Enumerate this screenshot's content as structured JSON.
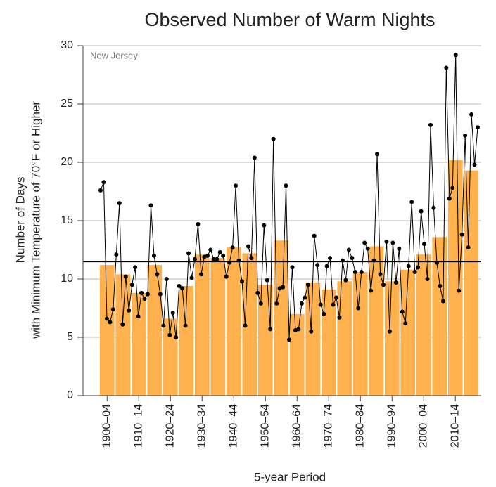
{
  "chart_data": {
    "type": "bar",
    "title": "Observed Number of Warm Nights",
    "subtitle": "New Jersey",
    "ylabel": [
      "Number of Days",
      "with Minimum Temperature of 70°F or Higher"
    ],
    "xlabel": "5-year Period",
    "categories": [
      "1900–04",
      null,
      "1910–14",
      null,
      "1920–24",
      null,
      "1930–34",
      null,
      "1940–44",
      null,
      "1950–54",
      null,
      "1960–64",
      null,
      "1970–74",
      null,
      "1980–84",
      null,
      "1990–94",
      null,
      "2000–04",
      null,
      "2010–14",
      null
    ],
    "values": [
      11.2,
      10.4,
      8.8,
      11.2,
      6.6,
      9.4,
      12.1,
      11.8,
      12.7,
      12.2,
      9.5,
      13.3,
      7.0,
      9.7,
      9.1,
      9.8,
      10.6,
      12.8,
      9.8,
      10.8,
      12.1,
      13.6,
      20.2,
      19.3
    ],
    "color": "#ffb14e",
    "annual": {
      "type": "line",
      "color": "#000000",
      "values": [
        17.6,
        18.3,
        6.6,
        6.3,
        7.4,
        12.1,
        16.5,
        6.1,
        10.2,
        7.3,
        9.5,
        11.0,
        6.8,
        8.8,
        8.3,
        8.7,
        16.3,
        12.0,
        10.4,
        8.7,
        6.0,
        10.0,
        5.2,
        7.1,
        5.0,
        9.4,
        9.2,
        6.0,
        12.2,
        10.1,
        11.7,
        14.7,
        10.4,
        11.9,
        12.0,
        12.5,
        11.7,
        11.7,
        12.3,
        12.0,
        10.2,
        11.4,
        12.7,
        18.0,
        11.6,
        9.8,
        6.0,
        12.8,
        11.8,
        20.4,
        8.8,
        7.9,
        14.6,
        9.9,
        5.7,
        22.0,
        7.9,
        9.2,
        9.3,
        18.0,
        4.8,
        11.0,
        5.6,
        5.7,
        7.9,
        8.4,
        9.5,
        5.5,
        13.7,
        11.2,
        7.8,
        7.0,
        11.1,
        11.8,
        7.8,
        8.4,
        6.7,
        11.6,
        9.9,
        12.5,
        11.8,
        10.6,
        7.5,
        10.6,
        13.1,
        12.6,
        9.0,
        11.6,
        20.7,
        10.4,
        9.5,
        13.2,
        5.5,
        13.1,
        9.7,
        12.6,
        7.2,
        6.2,
        11.1,
        16.6,
        10.6,
        11.0,
        15.8,
        13.0,
        10.0,
        23.2,
        16.1,
        11.4,
        9.4,
        8.1,
        28.1,
        16.9,
        17.8,
        29.2,
        9.0,
        13.8,
        22.3,
        12.7,
        24.1,
        19.8,
        23.0
      ]
    },
    "mean": 11.5,
    "ylim": [
      0,
      30
    ],
    "yticks": [
      0,
      5,
      10,
      15,
      20,
      25,
      30
    ],
    "grid": true
  }
}
